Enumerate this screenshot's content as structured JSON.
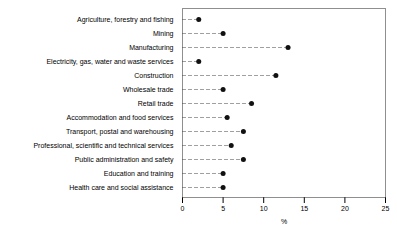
{
  "chart_data": {
    "type": "lollipop",
    "orientation": "horizontal",
    "categories": [
      "Agriculture, forestry and fishing",
      "Mining",
      "Manufacturing",
      "Electricity, gas, water and waste services",
      "Construction",
      "Wholesale trade",
      "Retail trade",
      "Accommodation and food services",
      "Transport, postal and warehousing",
      "Professional, scientific and technical services",
      "Public administration and safety",
      "Education and training",
      "Health care and social assistance"
    ],
    "values": [
      2.0,
      5.0,
      13.0,
      2.0,
      11.5,
      5.0,
      8.5,
      5.5,
      7.5,
      6.0,
      7.5,
      5.0,
      5.0
    ],
    "xlim": [
      0,
      25
    ],
    "xticks": [
      0,
      5,
      10,
      15,
      20,
      25
    ],
    "xlabel": "%",
    "color": "#111111",
    "line_style": "dashed",
    "marker": "circle"
  }
}
